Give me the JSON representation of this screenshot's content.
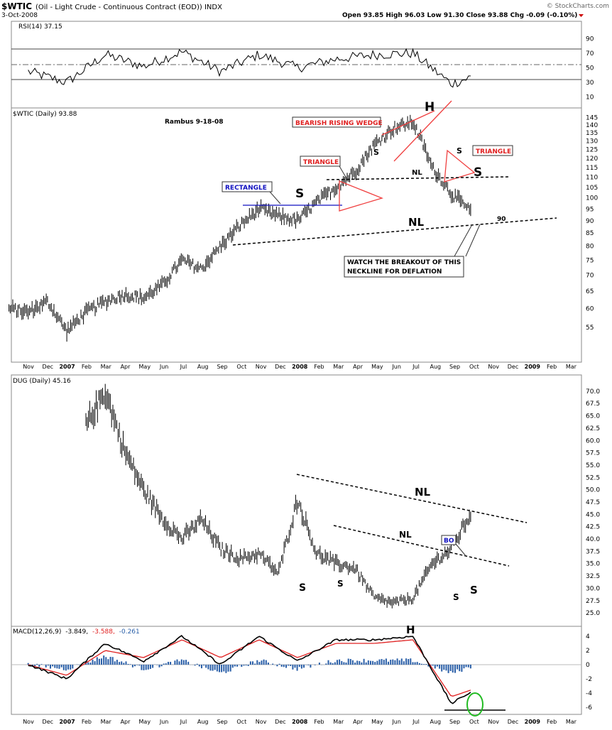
{
  "header": {
    "title_symbol": "$WTIC",
    "title_desc": "(Oil - Light Crude - Continuous Contract (EOD)) INDX",
    "date": "3-Oct-2008",
    "watermark": "© StockCharts.com",
    "quote": "Open 93.85  High 96.03  Low 91.30  Close 93.88  Chg -0.09 (-0.10%)"
  },
  "rsi": {
    "label": "RSI(14) 37.15",
    "ticks": [
      "90",
      "70",
      "50",
      "30",
      "10"
    ]
  },
  "wtic": {
    "label": "$WTIC (Daily) 93.88",
    "author": "Rambus  9-18-08",
    "ticks": [
      "145",
      "140",
      "135",
      "130",
      "125",
      "120",
      "115",
      "110",
      "105",
      "100",
      "95",
      "90",
      "85",
      "80",
      "75",
      "70",
      "65",
      "60",
      "55"
    ],
    "annotations": {
      "rising_wedge": "BEARISH RISING WEDGE",
      "triangle_left": "TRIANGLE",
      "triangle_right": "TRIANGLE",
      "rectangle": "RECTANGLE",
      "head": "H",
      "s_left": "S",
      "s_right_small": "S",
      "s_right": "S",
      "s_wedge": "S",
      "nl_upper": "NL",
      "nl_lower": "NL",
      "ninety": "90",
      "watch_line1": "WATCH THE BREAKOUT OF THIS",
      "watch_line2": "NECKLINE FOR DEFLATION"
    }
  },
  "months": [
    "Nov",
    "Dec",
    "2007",
    "Feb",
    "Mar",
    "Apr",
    "May",
    "Jun",
    "Jul",
    "Aug",
    "Sep",
    "Oct",
    "Nov",
    "Dec",
    "2008",
    "Feb",
    "Mar",
    "Apr",
    "May",
    "Jun",
    "Jul",
    "Aug",
    "Sep",
    "Oct",
    "Nov",
    "Dec",
    "2009",
    "Feb",
    "Mar"
  ],
  "dug": {
    "label": "DUG (Daily) 45.16",
    "ticks": [
      "70.0",
      "67.5",
      "65.0",
      "62.5",
      "60.0",
      "57.5",
      "55.0",
      "52.5",
      "50.0",
      "47.5",
      "45.0",
      "42.5",
      "40.0",
      "37.5",
      "35.0",
      "32.5",
      "30.0",
      "27.5",
      "25.0"
    ],
    "annotations": {
      "nl_upper": "NL",
      "nl_lower": "NL",
      "bo": "BO",
      "s1": "S",
      "s2": "S",
      "s3": "S",
      "s4": "S",
      "head": "H"
    }
  },
  "macd": {
    "label_name": "MACD(12,26,9)",
    "val1": "-3.849,",
    "val2": "-3.588,",
    "val3": "-0.261",
    "ticks": [
      "4",
      "2",
      "0",
      "-2",
      "-4",
      "-6"
    ]
  },
  "colors": {
    "annotation_red": "#e02020",
    "annotation_blue": "#1010c0",
    "macd_signal": "#e02020",
    "histogram": "#2a5fa8",
    "circle_green": "#22bb22",
    "rsi_fill": "#3a7a3a"
  },
  "chart_data": [
    {
      "type": "line",
      "title": "RSI(14)",
      "ylim": [
        0,
        100
      ],
      "reference_lines": [
        30,
        50,
        70
      ],
      "x": [
        "2006-11",
        "2007-01",
        "2007-03",
        "2007-05",
        "2007-07",
        "2007-09",
        "2007-11",
        "2008-01",
        "2008-03",
        "2008-05",
        "2008-07",
        "2008-09",
        "2008-10"
      ],
      "values": [
        45,
        30,
        68,
        52,
        72,
        45,
        68,
        50,
        62,
        68,
        70,
        28,
        37.15
      ]
    },
    {
      "type": "bar",
      "title": "$WTIC (Daily) 93.88",
      "ylim": [
        50,
        150
      ],
      "log_scale": true,
      "x": [
        "2006-10",
        "2006-11",
        "2006-12",
        "2007-01",
        "2007-02",
        "2007-03",
        "2007-04",
        "2007-05",
        "2007-06",
        "2007-07",
        "2007-08",
        "2007-09",
        "2007-10",
        "2007-11",
        "2007-12",
        "2008-01",
        "2008-02",
        "2008-03",
        "2008-04",
        "2008-05",
        "2008-06",
        "2008-07",
        "2008-08",
        "2008-09",
        "2008-10"
      ],
      "values": [
        60,
        59,
        62,
        54,
        59,
        62,
        64,
        63,
        67,
        75,
        72,
        80,
        88,
        95,
        92,
        90,
        98,
        105,
        113,
        128,
        138,
        142,
        115,
        102,
        93.88
      ]
    },
    {
      "type": "bar",
      "title": "DUG (Daily) 45.16",
      "ylim": [
        23,
        72
      ],
      "x": [
        "2007-02",
        "2007-03",
        "2007-04",
        "2007-05",
        "2007-06",
        "2007-07",
        "2007-08",
        "2007-09",
        "2007-10",
        "2007-11",
        "2007-12",
        "2008-01",
        "2008-02",
        "2008-03",
        "2008-04",
        "2008-05",
        "2008-06",
        "2008-07",
        "2008-08",
        "2008-09",
        "2008-10"
      ],
      "values": [
        63,
        70,
        58,
        50,
        44,
        40,
        44,
        38,
        36,
        37,
        33,
        48,
        37,
        35,
        34,
        28,
        27,
        28,
        35,
        38,
        45.16
      ]
    },
    {
      "type": "line",
      "title": "MACD(12,26,9)",
      "ylim": [
        -7,
        5
      ],
      "x": [
        "2006-11",
        "2007-01",
        "2007-03",
        "2007-05",
        "2007-07",
        "2007-09",
        "2007-11",
        "2008-01",
        "2008-03",
        "2008-05",
        "2008-07",
        "2008-09",
        "2008-10"
      ],
      "series": [
        {
          "name": "MACD",
          "values": [
            0,
            -2,
            3,
            0.5,
            4,
            0,
            4,
            0.5,
            3.5,
            3.5,
            4,
            -5.5,
            -3.849
          ]
        },
        {
          "name": "Signal",
          "values": [
            0,
            -1.5,
            2,
            1,
            3.5,
            1,
            3.5,
            1,
            3,
            3,
            3.5,
            -4.5,
            -3.588
          ]
        }
      ],
      "histogram_last": -0.261
    }
  ]
}
